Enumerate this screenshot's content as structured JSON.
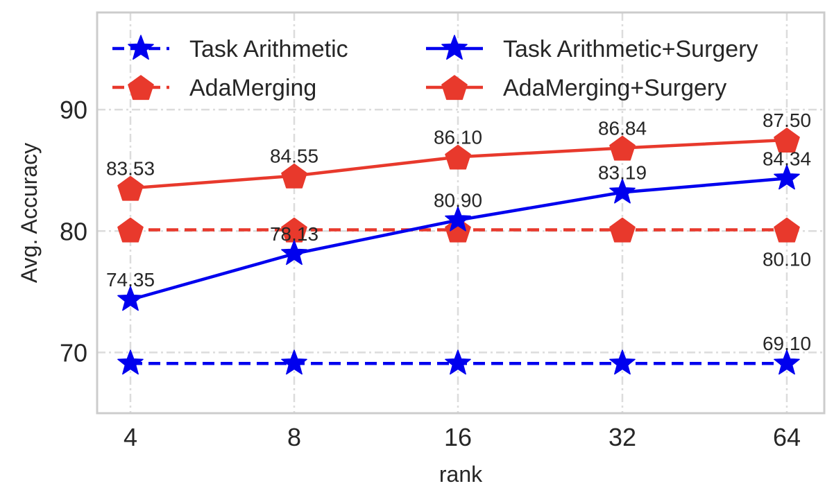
{
  "chart_data": {
    "type": "line",
    "title": "",
    "xlabel": "rank",
    "ylabel": "Avg. Accuracy",
    "categories": [
      "4",
      "8",
      "16",
      "32",
      "64"
    ],
    "yticks": [
      70,
      80,
      90
    ],
    "ylim": [
      65,
      98
    ],
    "grid": true,
    "legend": "top, two columns",
    "series": [
      {
        "name": "Task Arithmetic",
        "values": [
          69.1,
          69.1,
          69.1,
          69.1,
          69.1
        ],
        "color": "#0000ee",
        "line": "dashed",
        "marker": "star",
        "labels": [
          {
            "index": 4,
            "text": "69.10",
            "position": "above"
          }
        ]
      },
      {
        "name": "AdaMerging",
        "values": [
          80.1,
          80.1,
          80.1,
          80.1,
          80.1
        ],
        "color": "#e8392c",
        "line": "dashed",
        "marker": "pentagon",
        "labels": [
          {
            "index": 4,
            "text": "80.10",
            "position": "below"
          }
        ]
      },
      {
        "name": "Task Arithmetic+Surgery",
        "values": [
          74.35,
          78.13,
          80.9,
          83.19,
          84.34
        ],
        "color": "#0000ee",
        "line": "solid",
        "marker": "star",
        "labels": [
          {
            "index": 0,
            "text": "74.35",
            "position": "above"
          },
          {
            "index": 1,
            "text": "78.13",
            "position": "above"
          },
          {
            "index": 2,
            "text": "80.90",
            "position": "above"
          },
          {
            "index": 3,
            "text": "83.19",
            "position": "above"
          },
          {
            "index": 4,
            "text": "84.34",
            "position": "above"
          }
        ]
      },
      {
        "name": "AdaMerging+Surgery",
        "values": [
          83.53,
          84.55,
          86.1,
          86.84,
          87.5
        ],
        "color": "#e8392c",
        "line": "solid",
        "marker": "pentagon",
        "labels": [
          {
            "index": 0,
            "text": "83.53",
            "position": "above"
          },
          {
            "index": 1,
            "text": "84.55",
            "position": "above"
          },
          {
            "index": 2,
            "text": "86.10",
            "position": "above"
          },
          {
            "index": 3,
            "text": "86.84",
            "position": "above"
          },
          {
            "index": 4,
            "text": "87.50",
            "position": "above"
          }
        ]
      }
    ],
    "colors": {
      "grid": "#dcdcdc",
      "frame": "#cccccc",
      "text": "#262626"
    }
  }
}
